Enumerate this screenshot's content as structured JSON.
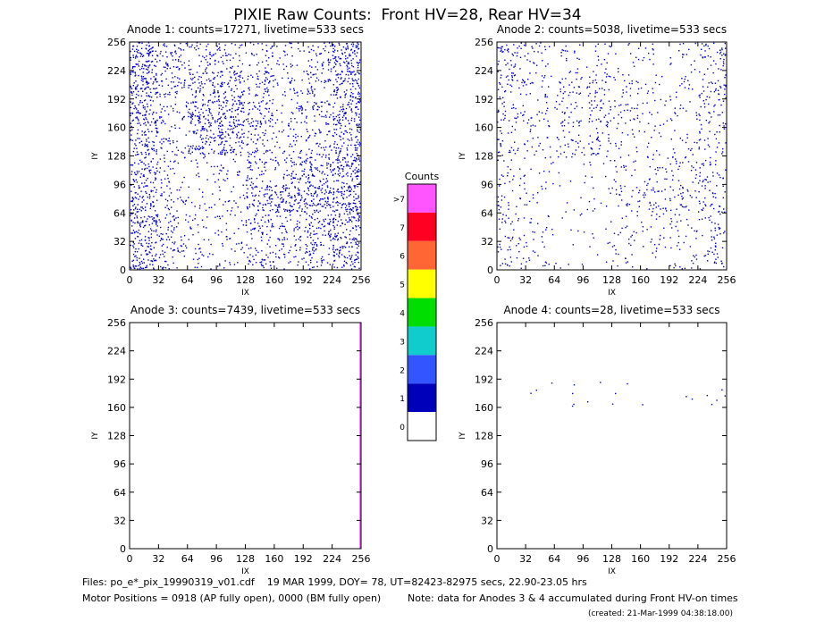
{
  "title": "PIXIE Raw Counts:  Front HV=28, Rear HV=34",
  "chart_data": [
    {
      "type": "heatmap",
      "title": "Anode 1: counts=17271, livetime=533 secs",
      "xlabel": "IX",
      "ylabel": "IY",
      "xlim": [
        0,
        256
      ],
      "ylim": [
        0,
        256
      ],
      "xticks": [
        0,
        32,
        64,
        96,
        128,
        160,
        192,
        224,
        256
      ],
      "yticks": [
        0,
        32,
        64,
        96,
        128,
        160,
        192,
        224,
        256
      ],
      "color": "#0000cc",
      "density": [
        [
          90,
          50,
          40,
          35,
          30,
          25,
          40,
          90
        ],
        [
          90,
          40,
          60,
          70,
          50,
          25,
          40,
          90
        ],
        [
          80,
          30,
          80,
          90,
          60,
          30,
          40,
          80
        ],
        [
          70,
          30,
          70,
          80,
          40,
          30,
          40,
          70
        ],
        [
          60,
          25,
          15,
          20,
          40,
          50,
          70,
          90
        ],
        [
          70,
          30,
          15,
          20,
          70,
          90,
          90,
          100
        ],
        [
          80,
          40,
          20,
          20,
          50,
          40,
          60,
          80
        ],
        [
          80,
          40,
          20,
          20,
          40,
          30,
          50,
          80
        ]
      ]
    },
    {
      "type": "heatmap",
      "title": "Anode 2: counts=5038, livetime=533 secs",
      "xlabel": "IX",
      "ylabel": "IY",
      "xlim": [
        0,
        256
      ],
      "ylim": [
        0,
        256
      ],
      "xticks": [
        0,
        32,
        64,
        96,
        128,
        160,
        192,
        224,
        256
      ],
      "yticks": [
        0,
        32,
        64,
        96,
        128,
        160,
        192,
        224,
        256
      ],
      "color": "#0000cc",
      "density": [
        [
          40,
          20,
          15,
          15,
          10,
          10,
          15,
          40
        ],
        [
          35,
          20,
          30,
          30,
          20,
          10,
          15,
          35
        ],
        [
          30,
          20,
          30,
          35,
          25,
          15,
          15,
          30
        ],
        [
          25,
          15,
          25,
          30,
          15,
          10,
          15,
          25
        ],
        [
          20,
          10,
          5,
          10,
          15,
          20,
          25,
          30
        ],
        [
          20,
          10,
          5,
          10,
          25,
          30,
          30,
          35
        ],
        [
          25,
          15,
          5,
          5,
          15,
          15,
          20,
          25
        ],
        [
          25,
          15,
          5,
          5,
          15,
          10,
          20,
          25
        ]
      ]
    },
    {
      "type": "heatmap",
      "title": "Anode 3: counts=7439, livetime=533 secs",
      "xlabel": "IX",
      "ylabel": "IY",
      "xlim": [
        0,
        256
      ],
      "ylim": [
        0,
        256
      ],
      "xticks": [
        0,
        32,
        64,
        96,
        128,
        160,
        192,
        224,
        256
      ],
      "yticks": [
        0,
        32,
        64,
        96,
        128,
        160,
        192,
        224,
        256
      ],
      "color": "#0000cc",
      "stripe": {
        "x": 255,
        "color": "#ff55ff"
      },
      "density": [
        [
          0,
          0,
          0,
          0,
          0,
          0,
          0,
          0
        ],
        [
          0,
          0,
          0,
          0,
          0,
          0,
          0,
          0
        ],
        [
          0,
          0,
          0,
          0,
          0,
          0,
          0,
          0
        ],
        [
          0,
          0,
          0,
          0,
          0,
          0,
          0,
          0
        ],
        [
          0,
          0,
          0,
          0,
          0,
          0,
          0,
          0
        ],
        [
          0,
          0,
          0,
          0,
          0,
          0,
          0,
          0
        ],
        [
          0,
          0,
          0,
          0,
          0,
          0,
          0,
          0
        ],
        [
          0,
          0,
          0,
          0,
          0,
          0,
          0,
          0
        ]
      ]
    },
    {
      "type": "heatmap",
      "title": "Anode 4: counts=28, livetime=533 secs",
      "xlabel": "IX",
      "ylabel": "IY",
      "xlim": [
        0,
        256
      ],
      "ylim": [
        0,
        256
      ],
      "xticks": [
        0,
        32,
        64,
        96,
        128,
        160,
        192,
        224,
        256
      ],
      "yticks": [
        0,
        32,
        64,
        96,
        128,
        160,
        192,
        224,
        256
      ],
      "color": "#0000cc",
      "density": [
        [
          0,
          0,
          0,
          0,
          0,
          0,
          0,
          0
        ],
        [
          0,
          0,
          0,
          0,
          0,
          0,
          0,
          0
        ],
        [
          0,
          3,
          4,
          2,
          3,
          1,
          2,
          5
        ],
        [
          0,
          0,
          0,
          0,
          0,
          0,
          0,
          0
        ],
        [
          0,
          0,
          0,
          0,
          0,
          0,
          0,
          0
        ],
        [
          0,
          0,
          0,
          0,
          0,
          0,
          0,
          0
        ],
        [
          0,
          0,
          0,
          0,
          0,
          0,
          0,
          0
        ],
        [
          0,
          0,
          0,
          0,
          0,
          0,
          0,
          0
        ]
      ]
    }
  ],
  "colorbar": {
    "title": "Counts",
    "labels": [
      ">7",
      "7",
      "6",
      "5",
      "4",
      "3",
      "2",
      "1",
      "0"
    ],
    "colors": [
      "#ff55ff",
      "#ff0022",
      "#ff6633",
      "#ffff00",
      "#00dd00",
      "#11cccc",
      "#3355ff",
      "#0000bb",
      "#ffffff"
    ]
  },
  "footer": {
    "files": "Files: po_e*_pix_19990319_v01.cdf    19 MAR 1999, DOY= 78, UT=82423-82975 secs, 22.90-23.05 hrs",
    "motor": "Motor Positions = 0918 (AP fully open), 0000 (BM fully open)",
    "note": "Note: data for Anodes 3 & 4 accumulated during Front HV-on times",
    "created": "(created: 21-Mar-1999 04:38:18.00)"
  }
}
